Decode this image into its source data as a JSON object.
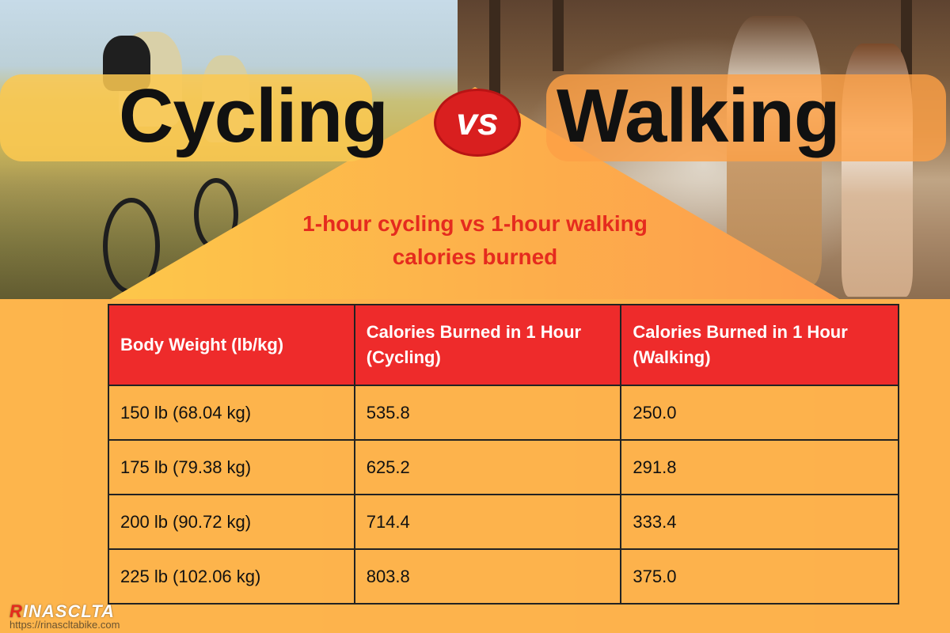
{
  "colors": {
    "accent_red": "#ee2b2b",
    "subtitle_red": "#e52b1e",
    "vs_red": "#d91f1f",
    "bg_yellow": "#fde057",
    "bg_orange": "#fd9a4a"
  },
  "title": {
    "left": "Cycling",
    "vs": "vs",
    "right": "Walking"
  },
  "subtitle": {
    "line1": "1-hour cycling vs 1-hour walking",
    "line2": "calories burned"
  },
  "table": {
    "headers": [
      "Body Weight (lb/kg)",
      "Calories Burned in 1 Hour (Cycling)",
      "Calories Burned in 1 Hour (Walking)"
    ],
    "rows": [
      [
        "150 lb (68.04 kg)",
        "535.8",
        "250.0"
      ],
      [
        "175 lb (79.38 kg)",
        "625.2",
        "291.8"
      ],
      [
        "200 lb (90.72 kg)",
        "714.4",
        "333.4"
      ],
      [
        "225 lb (102.06 kg)",
        "803.8",
        "375.0"
      ]
    ]
  },
  "brand": {
    "initial": "R",
    "rest": "INASCLTA",
    "url": "https://rinascltabike.com"
  }
}
